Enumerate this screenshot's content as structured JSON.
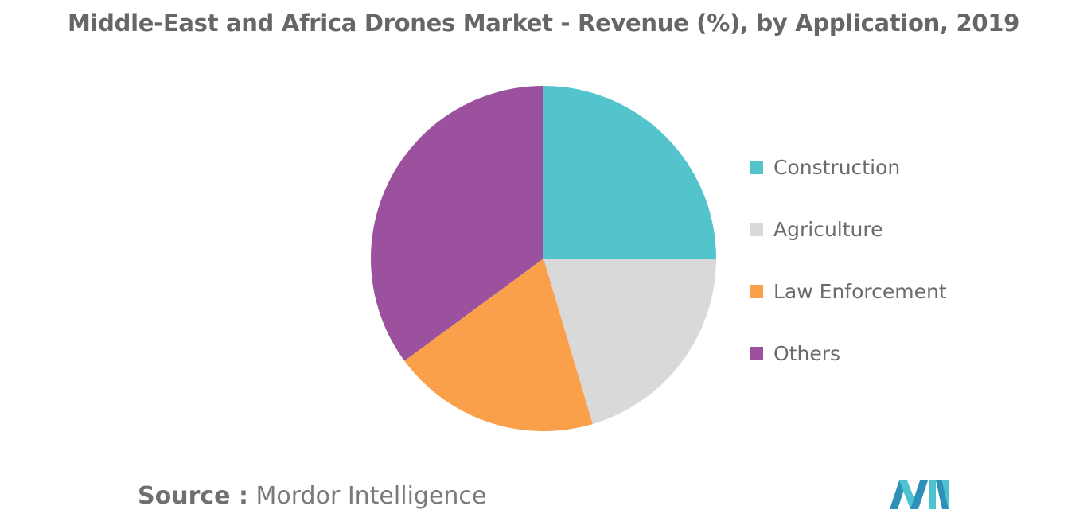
{
  "title": "Middle-East and Africa Drones Market - Revenue (%), by Application, 2019",
  "source": {
    "prefix": "Source :",
    "name": "Mordor Intelligence"
  },
  "logo_icon": "mordor-intelligence-logo",
  "chart_data": {
    "type": "pie",
    "title": "Middle-East and Africa Drones Market - Revenue (%), by Application, 2019",
    "legend_position": "right",
    "categories": [
      "Construction",
      "Agriculture",
      "Law Enforcement",
      "Others"
    ],
    "values": [
      25,
      20.4,
      19.5,
      35.1
    ],
    "colors": [
      "#53c4cc",
      "#d9d9d9",
      "#fba04a",
      "#9b519d"
    ]
  }
}
